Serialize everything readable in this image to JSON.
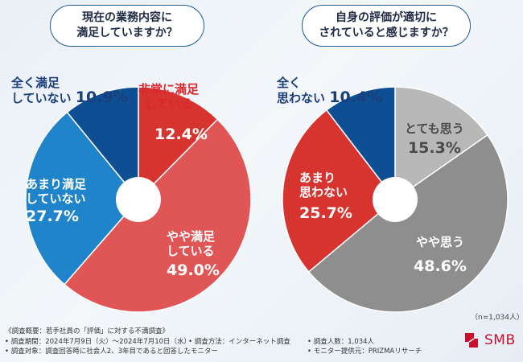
{
  "charts": [
    {
      "question": [
        "現在の業務内容に",
        "満足していますか？"
      ],
      "segments": [
        {
          "label": [
            "非常に満足",
            "している"
          ],
          "value": "12.4%",
          "color": "#d8342f"
        },
        {
          "label": [
            "やや満足",
            "している"
          ],
          "value": "49.0%",
          "color": "#e05555"
        },
        {
          "label": [
            "あまり満足",
            "していない"
          ],
          "value": "27.7%",
          "color": "#1f84c9"
        },
        {
          "label": [
            "全く満足",
            "していない"
          ],
          "value": "10.9%",
          "color": "#0e4f94"
        }
      ]
    },
    {
      "question": [
        "自身の評価が適切に",
        "されていると感じますか？"
      ],
      "segments": [
        {
          "label": [
            "とても思う"
          ],
          "value": "15.3%",
          "color": "#b8b8b8"
        },
        {
          "label": [
            "やや思う"
          ],
          "value": "48.6%",
          "color": "#8e8e8e"
        },
        {
          "label": [
            "あまり",
            "思わない"
          ],
          "value": "25.7%",
          "color": "#d8342f"
        },
        {
          "label": [
            "全く",
            "思わない"
          ],
          "value": "10.4%",
          "color": "#0e4f94"
        }
      ]
    }
  ],
  "chart_data": [
    {
      "type": "pie",
      "title": "現在の業務内容に満足していますか？",
      "categories": [
        "非常に満足している",
        "やや満足している",
        "あまり満足していない",
        "全く満足していない"
      ],
      "values": [
        12.4,
        49.0,
        27.7,
        10.9
      ]
    },
    {
      "type": "pie",
      "title": "自身の評価が適切にされていると感じますか？",
      "categories": [
        "とても思う",
        "やや思う",
        "あまり思わない",
        "全く思わない"
      ],
      "values": [
        15.3,
        48.6,
        25.7,
        10.4
      ]
    }
  ],
  "note_n": "（n=1,034人）",
  "footer": {
    "line1": "《調査概要：若手社員の「評価」に対する不満調査》",
    "period": "• 調査期間：2024年7月9日（火）～2024年7月10日（水）",
    "method": "• 調査方法：インターネット調査",
    "count": "• 調査人数：1,034人",
    "target": "• 調査対象：調査回答時に社会人2、3年目であると回答したモニター",
    "provider": "• モニター提供元：PRIZMAリサーチ"
  },
  "logo": {
    "text": "SMB",
    "color": "#c8102e"
  }
}
